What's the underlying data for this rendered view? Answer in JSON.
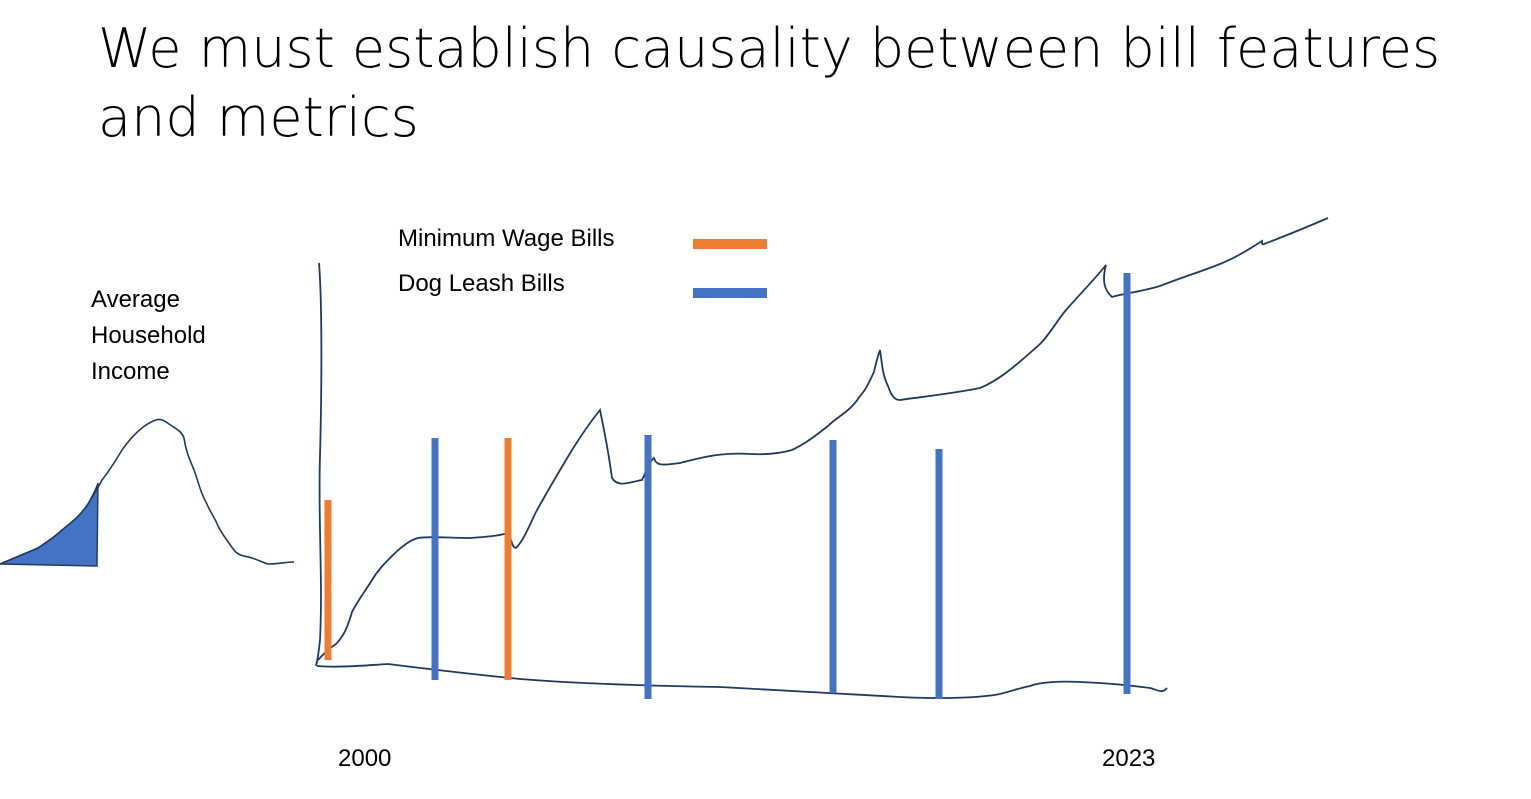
{
  "slide": {
    "title": "We must establish causality between bill features and metrics",
    "side_label": "Average Household Income"
  },
  "legend": {
    "items": [
      {
        "label": "Minimum Wage Bills",
        "color": "#ED7D31"
      },
      {
        "label": "Dog Leash Bills",
        "color": "#4472C4"
      }
    ]
  },
  "axis": {
    "start_label": "2000",
    "end_label": "2023"
  },
  "colors": {
    "line": "#1F3A5F",
    "minimum_wage": "#ED7D31",
    "dog_leash": "#4472C4",
    "shaded_area": "#4472C4"
  }
}
